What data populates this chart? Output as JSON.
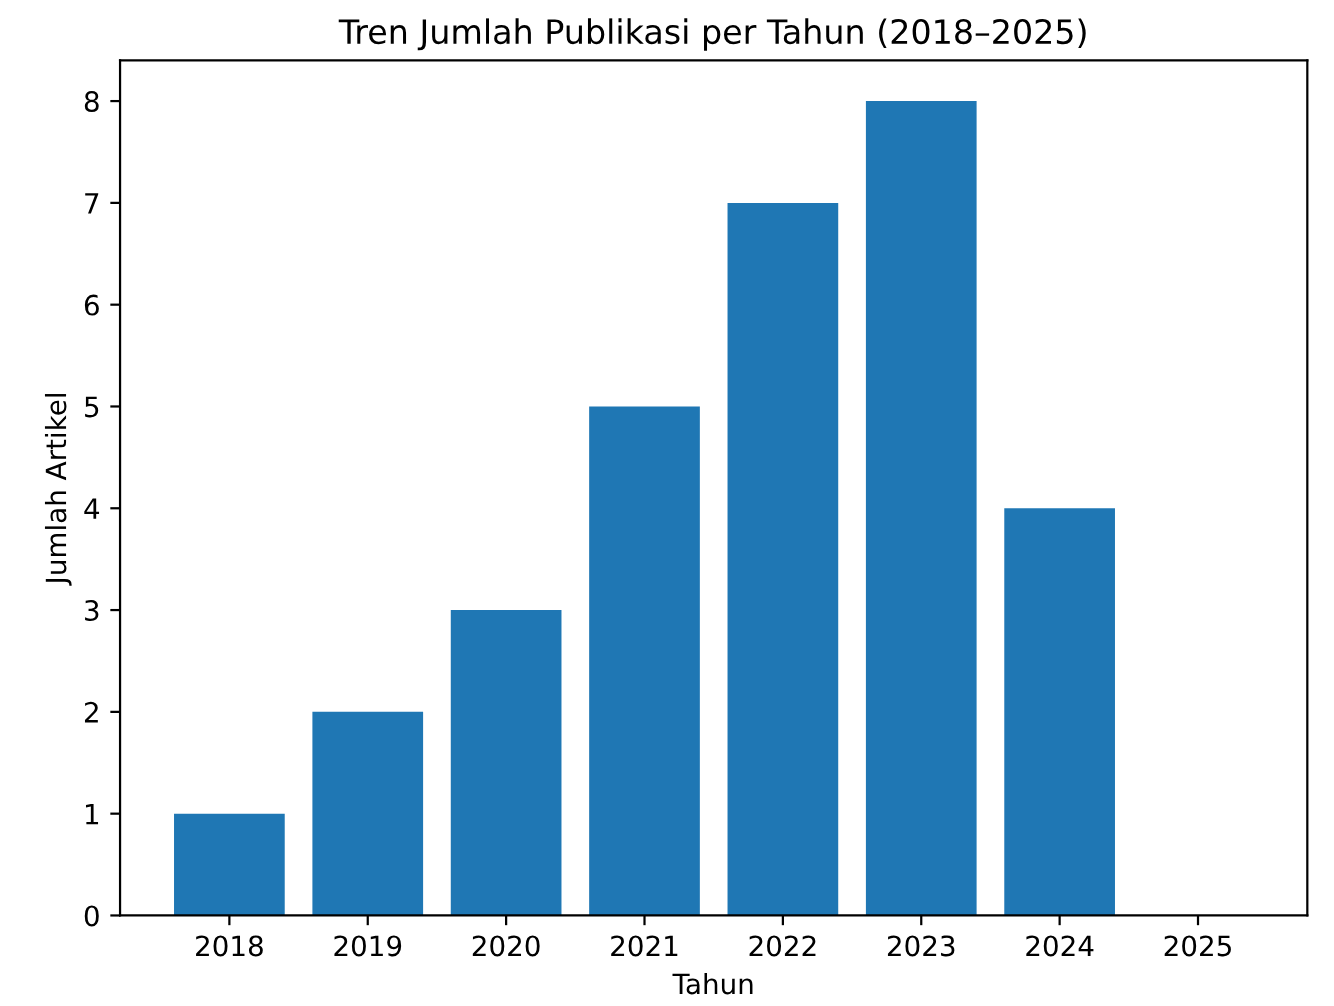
{
  "chart_data": {
    "type": "bar",
    "title": "Tren Jumlah Publikasi per Tahun (2018–2025)",
    "xlabel": "Tahun",
    "ylabel": "Jumlah Artikel",
    "categories": [
      "2018",
      "2019",
      "2020",
      "2021",
      "2022",
      "2023",
      "2024",
      "2025"
    ],
    "values": [
      1,
      2,
      3,
      5,
      7,
      8,
      4,
      0
    ],
    "color": "#1f77b4",
    "ylim": [
      0,
      8.4
    ],
    "yticks": [
      0,
      1,
      2,
      3,
      4,
      5,
      6,
      7,
      8
    ],
    "grid": false,
    "legend": false
  }
}
